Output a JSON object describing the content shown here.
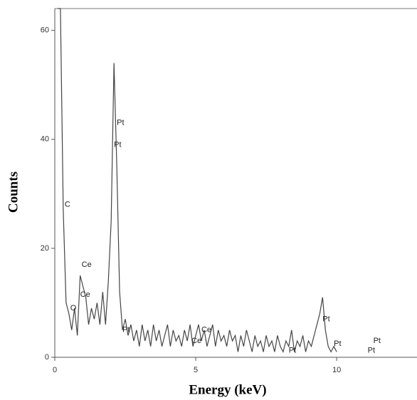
{
  "chart_data": {
    "type": "line",
    "x_label": "Energy (keV)",
    "y_label": "Counts",
    "x": [
      0.1,
      0.2,
      0.3,
      0.4,
      0.5,
      0.6,
      0.7,
      0.8,
      0.9,
      1.0,
      1.1,
      1.2,
      1.3,
      1.4,
      1.5,
      1.6,
      1.7,
      1.8,
      1.9,
      2.0,
      2.1,
      2.2,
      2.3,
      2.4,
      2.5,
      2.6,
      2.7,
      2.8,
      2.9,
      3.0,
      3.1,
      3.2,
      3.3,
      3.4,
      3.5,
      3.6,
      3.7,
      3.8,
      3.9,
      4.0,
      4.1,
      4.2,
      4.3,
      4.4,
      4.5,
      4.6,
      4.7,
      4.8,
      4.9,
      5.0,
      5.1,
      5.2,
      5.3,
      5.4,
      5.5,
      5.6,
      5.7,
      5.8,
      5.9,
      6.0,
      6.1,
      6.2,
      6.3,
      6.4,
      6.5,
      6.6,
      6.7,
      6.8,
      6.9,
      7.0,
      7.1,
      7.2,
      7.3,
      7.4,
      7.5,
      7.6,
      7.7,
      7.8,
      7.9,
      8.0,
      8.1,
      8.2,
      8.3,
      8.4,
      8.5,
      8.6,
      8.7,
      8.8,
      8.9,
      9.0,
      9.1,
      9.2,
      9.3,
      9.4,
      9.5,
      9.6,
      9.7,
      9.8,
      9.9,
      10.0
    ],
    "series": [
      {
        "color": "#444444",
        "values": [
          64,
          64,
          27,
          10,
          8,
          5,
          9,
          4,
          15,
          13,
          11,
          6,
          9,
          7,
          10,
          6,
          12,
          6,
          14,
          25,
          54,
          35,
          12,
          5,
          7,
          4,
          6,
          3,
          5,
          2,
          6,
          3,
          5,
          2,
          6,
          3,
          5,
          2,
          4,
          6,
          2,
          5,
          3,
          4,
          2,
          5,
          3,
          6,
          2,
          4,
          6,
          3,
          5,
          2,
          4,
          6,
          2,
          5,
          3,
          4,
          2,
          5,
          3,
          4,
          1,
          4,
          2,
          5,
          3,
          1,
          4,
          2,
          3,
          1,
          4,
          2,
          3,
          1,
          4,
          2,
          1,
          3,
          2,
          5,
          1,
          3,
          2,
          4,
          1,
          3,
          2,
          4,
          6,
          8,
          11,
          5,
          2,
          1,
          2,
          1
        ]
      }
    ],
    "xlim": [
      0,
      12.85
    ],
    "ylim": [
      0,
      64
    ],
    "xticks": [
      0,
      5,
      10
    ],
    "yticks": [
      0,
      20,
      40,
      60
    ],
    "annotations": [
      {
        "text": "C",
        "x": 0.35,
        "y": 28
      },
      {
        "text": "Ce",
        "x": 0.95,
        "y": 17
      },
      {
        "text": "Ce",
        "x": 0.9,
        "y": 11.5
      },
      {
        "text": "O",
        "x": 0.55,
        "y": 9
      },
      {
        "text": "Pt",
        "x": 2.2,
        "y": 43
      },
      {
        "text": "Pt",
        "x": 2.1,
        "y": 39
      },
      {
        "text": "Pt",
        "x": 2.4,
        "y": 5
      },
      {
        "text": "Ce",
        "x": 5.2,
        "y": 5
      },
      {
        "text": "Ce",
        "x": 4.85,
        "y": 3
      },
      {
        "text": "Pt",
        "x": 9.5,
        "y": 7
      },
      {
        "text": "Pt",
        "x": 9.9,
        "y": 2.5
      },
      {
        "text": "Pt",
        "x": 8.3,
        "y": 1.2
      },
      {
        "text": "Pt",
        "x": 11.3,
        "y": 3
      },
      {
        "text": "Pt",
        "x": 11.1,
        "y": 1.2
      }
    ]
  }
}
